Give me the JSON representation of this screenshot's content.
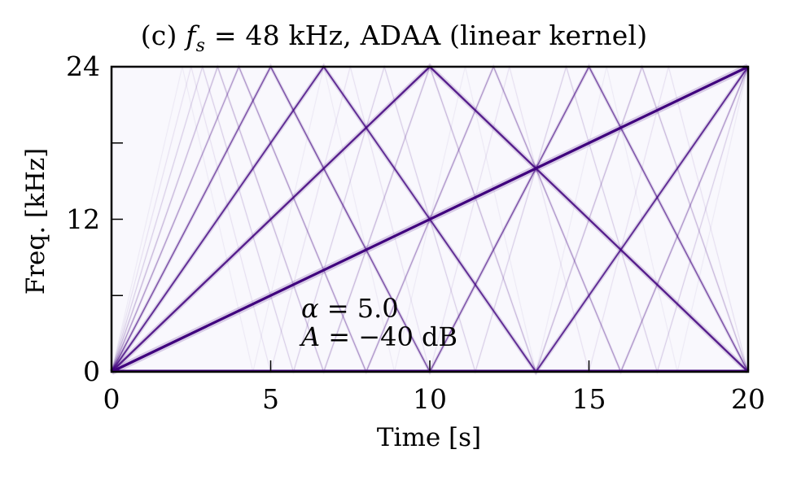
{
  "chart_data": {
    "type": "heatmap",
    "subtype": "spectrogram",
    "title": "(c) f_s = 48 kHz, ADAA (linear kernel)",
    "title_parts": {
      "prefix": "(c) ",
      "var": "f",
      "sub": "s",
      "rest": " = 48 kHz, ADAA (linear kernel)"
    },
    "xlabel": "Time [s]",
    "ylabel": "Freq. [kHz]",
    "xlim": [
      0,
      20
    ],
    "ylim": [
      0,
      24
    ],
    "xticks": [
      0,
      5,
      10,
      15,
      20
    ],
    "xtick_labels": [
      "0",
      "5",
      "10",
      "15",
      "20"
    ],
    "yticks": [
      0,
      6,
      12,
      18,
      24
    ],
    "ytick_labels": [
      "0",
      "",
      "12",
      "",
      "24"
    ],
    "grid": false,
    "colormap": "Purples",
    "background_color": "#f9f8fd",
    "line_color": "#3f007d",
    "nyquist_khz": 24,
    "sweep": {
      "start_khz": 0,
      "end_khz": 24,
      "duration_s": 20
    },
    "harmonics": [
      {
        "order": 1,
        "opacity": 1.0,
        "width": 3.2
      },
      {
        "order": 2,
        "opacity": 0.85,
        "width": 2.4
      },
      {
        "order": 3,
        "opacity": 0.78,
        "width": 2.0
      },
      {
        "order": 4,
        "opacity": 0.6,
        "width": 1.6
      },
      {
        "order": 5,
        "opacity": 0.35,
        "width": 1.3
      },
      {
        "order": 6,
        "opacity": 0.22,
        "width": 1.2
      },
      {
        "order": 7,
        "opacity": 0.14,
        "width": 1.1
      },
      {
        "order": 8,
        "opacity": 0.08,
        "width": 1.0
      },
      {
        "order": 9,
        "opacity": 0.05,
        "width": 1.0
      }
    ],
    "annotations": [
      {
        "text": "α = 5.0",
        "x": 6.0,
        "y": 4.8
      },
      {
        "text": "A = −40 dB",
        "x": 6.0,
        "y": 2.7
      }
    ]
  },
  "annotation": {
    "alpha_label": "α",
    "alpha_value": " = 5.0",
    "amp_label": "A",
    "amp_value": " = −40 dB"
  }
}
